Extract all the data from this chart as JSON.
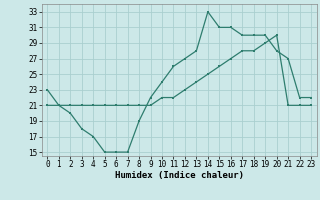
{
  "xlabel": "Humidex (Indice chaleur)",
  "line1_x": [
    0,
    1,
    2,
    3,
    4,
    5,
    6,
    7,
    8,
    9,
    10,
    11,
    12,
    13,
    14,
    15,
    16,
    17,
    18,
    19,
    20,
    21,
    22,
    23
  ],
  "line1_y": [
    23,
    21,
    20,
    18,
    17,
    15,
    15,
    15,
    19,
    22,
    24,
    26,
    27,
    28,
    33,
    31,
    31,
    30,
    30,
    30,
    28,
    27,
    22,
    22
  ],
  "line2_x": [
    0,
    1,
    2,
    3,
    4,
    5,
    6,
    7,
    8,
    9,
    10,
    11,
    12,
    13,
    14,
    15,
    16,
    17,
    18,
    19,
    20,
    21,
    22,
    23
  ],
  "line2_y": [
    21,
    21,
    21,
    21,
    21,
    21,
    21,
    21,
    21,
    21,
    22,
    22,
    23,
    24,
    25,
    26,
    27,
    28,
    28,
    29,
    30,
    21,
    21,
    21
  ],
  "color": "#2E7D6E",
  "background": "#cce8e8",
  "grid_color": "#aacfcf",
  "ylim": [
    14.5,
    34
  ],
  "xlim": [
    -0.5,
    23.5
  ],
  "yticks": [
    15,
    17,
    19,
    21,
    23,
    25,
    27,
    29,
    31,
    33
  ],
  "xticks": [
    0,
    1,
    2,
    3,
    4,
    5,
    6,
    7,
    8,
    9,
    10,
    11,
    12,
    13,
    14,
    15,
    16,
    17,
    18,
    19,
    20,
    21,
    22,
    23
  ],
  "figsize": [
    3.2,
    2.0
  ],
  "dpi": 100
}
